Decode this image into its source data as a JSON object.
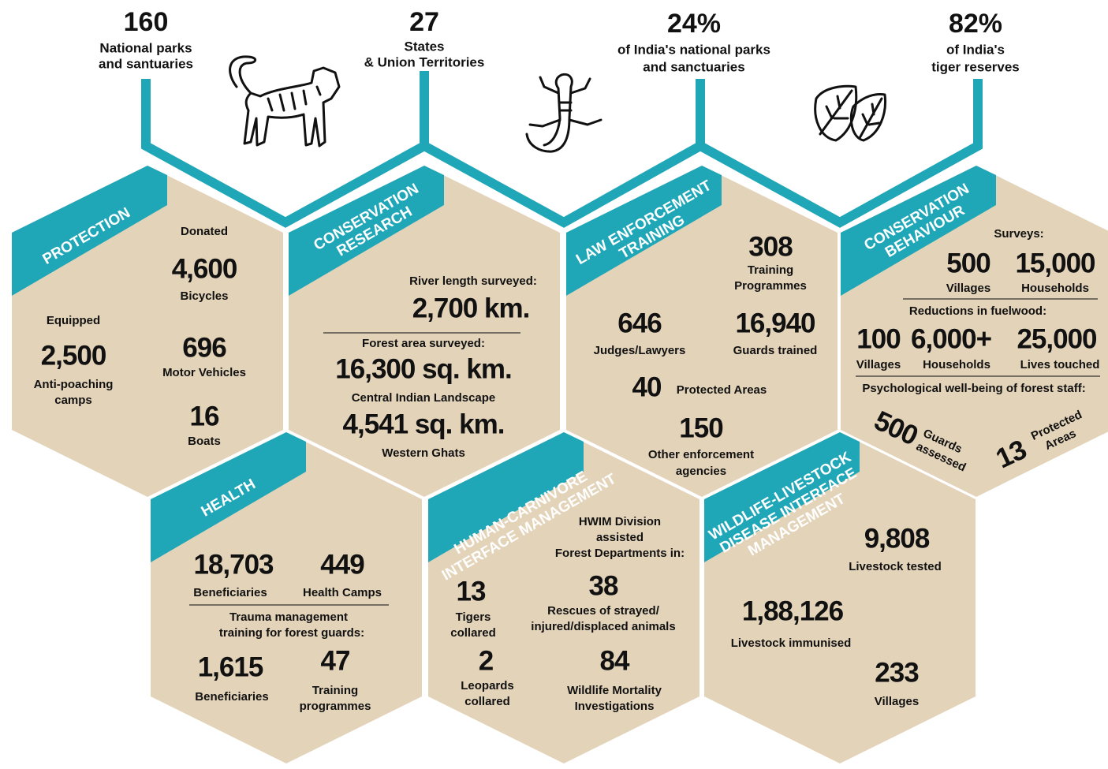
{
  "header": {
    "stats": [
      {
        "value": "160",
        "label": [
          "National parks",
          "and santuaries"
        ]
      },
      {
        "value": "27",
        "label": [
          "States",
          "& Union Territories"
        ]
      },
      {
        "value": "24%",
        "label": [
          "of India's national parks",
          "and sanctuaries"
        ]
      },
      {
        "value": "82%",
        "label": [
          "of India's",
          "tiger reserves"
        ]
      }
    ]
  },
  "hexagons": [
    {
      "title": [
        "PROTECTION"
      ],
      "texts": [
        "Donated",
        "4,600",
        "Bicycles",
        "Equipped",
        "2,500",
        "Anti-poaching",
        "camps",
        "696",
        "Motor Vehicles",
        "16",
        "Boats"
      ]
    },
    {
      "title": [
        "CONSERVATION",
        "RESEARCH"
      ],
      "texts": [
        "River length surveyed:",
        "2,700 km.",
        "Forest area surveyed:",
        "16,300 sq. km.",
        "Central Indian Landscape",
        "4,541 sq. km.",
        "Western Ghats"
      ]
    },
    {
      "title": [
        "LAW ENFORCEMENT",
        "TRAINING"
      ],
      "texts": [
        "308",
        "Training",
        "Programmes",
        "646",
        "Judges/Lawyers",
        "16,940",
        "Guards trained",
        "40",
        "Protected Areas",
        "150",
        "Other enforcement",
        "agencies"
      ]
    },
    {
      "title": [
        "CONSERVATION",
        "BEHAVIOUR"
      ],
      "texts": [
        "Surveys:",
        "500",
        "Villages",
        "15,000",
        "Households",
        "Reductions in fuelwood:",
        "100",
        "Villages",
        "6,000+",
        "Households",
        "25,000",
        "Lives touched",
        "Psychological well-being of forest staff:",
        "500",
        "Guards",
        "assessed",
        "13",
        "Protected",
        "Areas"
      ]
    },
    {
      "title": [
        "HEALTH"
      ],
      "texts": [
        "18,703",
        "Beneficiaries",
        "449",
        "Health Camps",
        "Trauma management",
        "training for forest guards:",
        "1,615",
        "Beneficiaries",
        "47",
        "Training",
        "programmes"
      ]
    },
    {
      "title": [
        "HUMAN-CARNIVORE",
        "INTERFACE MANAGEMENT"
      ],
      "texts": [
        "HWIM Division",
        "assisted",
        "Forest Departments in:",
        "13",
        "Tigers",
        "collared",
        "38",
        "Rescues of strayed/",
        "injured/displaced animals",
        "2",
        "Leopards",
        "collared",
        "84",
        "Wildlife Mortality",
        "Investigations"
      ]
    },
    {
      "title": [
        "WILDLIFE-LIVESTOCK",
        "DISEASE INTERFACE",
        "MANAGEMENT"
      ],
      "texts": [
        "9,808",
        "Livestock tested",
        "1,88,126",
        "Livestock immunised",
        "233",
        "Villages"
      ]
    }
  ]
}
